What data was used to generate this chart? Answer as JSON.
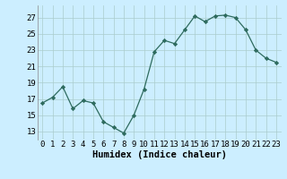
{
  "x": [
    0,
    1,
    2,
    3,
    4,
    5,
    6,
    7,
    8,
    9,
    10,
    11,
    12,
    13,
    14,
    15,
    16,
    17,
    18,
    19,
    20,
    21,
    22,
    23
  ],
  "y": [
    16.5,
    17.2,
    18.5,
    15.8,
    16.8,
    16.5,
    14.2,
    13.5,
    12.8,
    15.0,
    18.2,
    22.8,
    24.2,
    23.8,
    25.5,
    27.2,
    26.5,
    27.2,
    27.3,
    27.0,
    25.5,
    23.0,
    22.0,
    21.5
  ],
  "line_color": "#2e6b5e",
  "marker_color": "#2e6b5e",
  "bg_color": "#cceeff",
  "grid_color": "#aacccc",
  "xlabel": "Humidex (Indice chaleur)",
  "ylim": [
    12,
    28.5
  ],
  "xlim": [
    -0.5,
    23.5
  ],
  "yticks": [
    13,
    15,
    17,
    19,
    21,
    23,
    25,
    27
  ],
  "xticks": [
    0,
    1,
    2,
    3,
    4,
    5,
    6,
    7,
    8,
    9,
    10,
    11,
    12,
    13,
    14,
    15,
    16,
    17,
    18,
    19,
    20,
    21,
    22,
    23
  ],
  "tick_fontsize": 6.5,
  "label_fontsize": 7.5
}
